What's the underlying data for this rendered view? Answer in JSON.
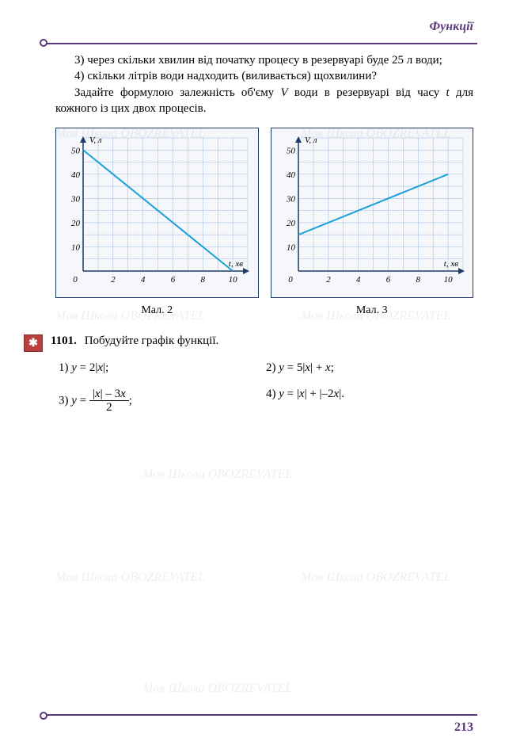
{
  "header": {
    "title": "Функції"
  },
  "text": {
    "p3": "3) через скільки хвилин від початку процесу в резервуарі буде 25 л води;",
    "p4a": "4) скільки літрів води надходить (виливається) щохвилини?",
    "p4b": "Задайте формулою залежність об'єму V води в резервуарі від часу t для кожного із цих двох процесів."
  },
  "charts": {
    "chart1": {
      "caption": "Мал. 2",
      "xlabel": "t, хв",
      "ylabel": "V, л",
      "xlim": [
        0,
        11
      ],
      "ylim": [
        0,
        55
      ],
      "xticks": [
        0,
        2,
        4,
        6,
        8,
        10
      ],
      "yticks": [
        0,
        10,
        20,
        30,
        40,
        50
      ],
      "grid_color": "#9bb8e0",
      "border_color": "#1a3a6a",
      "line_color": "#1aa0d8",
      "line": {
        "p1": {
          "x": 0,
          "y": 50
        },
        "p2": {
          "x": 10,
          "y": 0
        }
      }
    },
    "chart2": {
      "caption": "Мал. 3",
      "xlabel": "t, хв",
      "ylabel": "V, л",
      "xlim": [
        0,
        11
      ],
      "ylim": [
        0,
        55
      ],
      "xticks": [
        0,
        2,
        4,
        6,
        8,
        10
      ],
      "yticks": [
        0,
        10,
        20,
        30,
        40,
        50
      ],
      "grid_color": "#9bb8e0",
      "border_color": "#1a3a6a",
      "line_color": "#1aa0d8",
      "line": {
        "p1": {
          "x": 0,
          "y": 15
        },
        "p2": {
          "x": 10,
          "y": 40
        }
      }
    }
  },
  "ex": {
    "num": "1101.",
    "title": "Побудуйте графік функції.",
    "icon": "✱",
    "i1": {
      "label": "1) y = 2|x|;"
    },
    "i2": {
      "label": "2) y = 5|x| + x;"
    },
    "i3": {
      "label_pre": "3) y =",
      "frac_num": "|x| – 3x",
      "frac_den": "2",
      "label_post": ";"
    },
    "i4": {
      "label": "4) y = |x| + |–2x|."
    }
  },
  "page": {
    "num": "213"
  },
  "watermark": "Моя Школа OBOZREVATEL"
}
